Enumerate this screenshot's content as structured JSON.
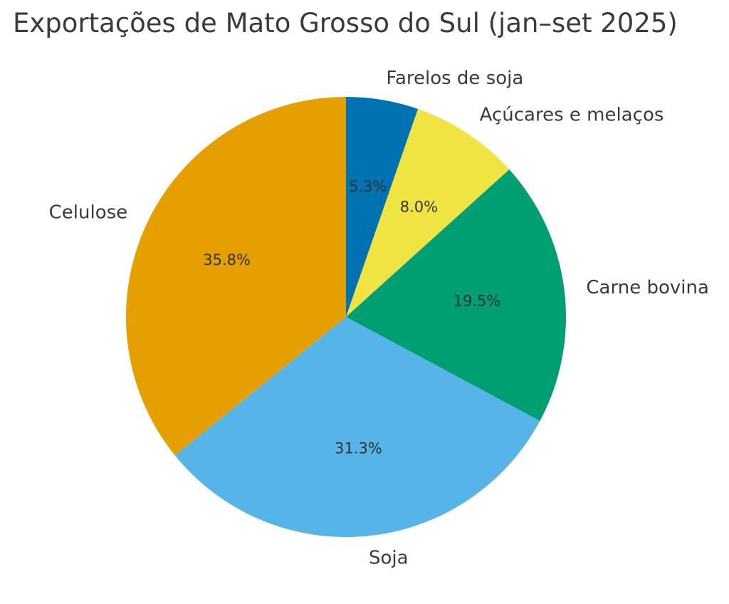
{
  "chart_data": {
    "type": "pie",
    "title": "Exportações de Mato Grosso do Sul (jan–set 2025)",
    "start_angle_deg": 90,
    "direction": "clockwise",
    "slices": [
      {
        "label": "Farelos de soja",
        "value": 5.3,
        "value_label": "5.3%",
        "color": "#0072b2"
      },
      {
        "label": "Açúcares e melaços",
        "value": 8.0,
        "value_label": "8.0%",
        "color": "#f0e442"
      },
      {
        "label": "Carne bovina",
        "value": 19.5,
        "value_label": "19.5%",
        "color": "#009e73"
      },
      {
        "label": "Soja",
        "value": 31.3,
        "value_label": "31.3%",
        "color": "#56b4e9"
      },
      {
        "label": "Celulose",
        "value": 35.8,
        "value_label": "35.8%",
        "color": "#e69f00"
      }
    ]
  }
}
